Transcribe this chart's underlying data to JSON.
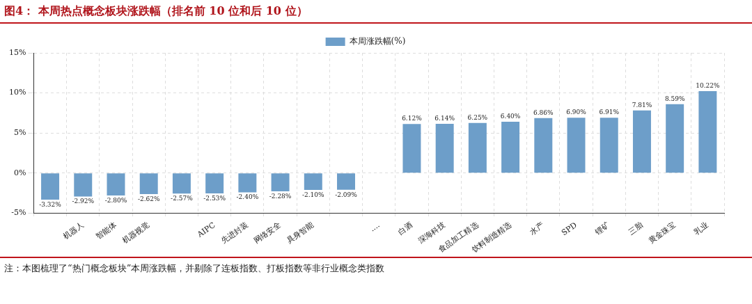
{
  "chart_data": {
    "type": "bar",
    "title": "图4： 本周热点概念板块涨跌幅（排名前 10 位和后 10 位）",
    "annotations": [
      "注：本图梳理了“热门概念板块”本周涨跌幅，并剔除了连板指数、打板指数等非行业概念类指数"
    ],
    "categories": [
      null,
      "机器人",
      "智能体",
      "机器视觉",
      null,
      "AIPC",
      "先进封装",
      "网络安全",
      "具身智能",
      null,
      "....",
      "白酒",
      "深海科技",
      "食品加工精选",
      "饮料制造精选",
      "水产",
      "SPD",
      "锂矿",
      "三胎",
      "黄金珠宝",
      "乳业"
    ],
    "series": [
      {
        "name": "本周涨跌幅(%)",
        "color": "#6d9ec9",
        "values": [
          -3.32,
          -2.92,
          -2.8,
          -2.62,
          -2.57,
          -2.53,
          -2.4,
          -2.28,
          -2.1,
          -2.09,
          null,
          6.12,
          6.14,
          6.25,
          6.4,
          6.86,
          6.9,
          6.91,
          7.81,
          8.59,
          10.22
        ],
        "value_labels": [
          "-3.32%",
          "-2.92%",
          "-2.80%",
          "-2.62%",
          "-2.57%",
          "-2.53%",
          "-2.40%",
          "-2.28%",
          "-2.10%",
          "-2.09%",
          null,
          "6.12%",
          "6.14%",
          "6.25%",
          "6.40%",
          "6.86%",
          "6.90%",
          "6.91%",
          "7.81%",
          "8.59%",
          "10.22%"
        ]
      }
    ],
    "ylim": [
      -5,
      15
    ],
    "yticks": [
      {
        "value": -5,
        "label": "-5%"
      },
      {
        "value": 0,
        "label": "0%"
      },
      {
        "value": 5,
        "label": "5%"
      },
      {
        "value": 10,
        "label": "10%"
      },
      {
        "value": 15,
        "label": "15%"
      }
    ],
    "grid": true,
    "legend": "top"
  }
}
